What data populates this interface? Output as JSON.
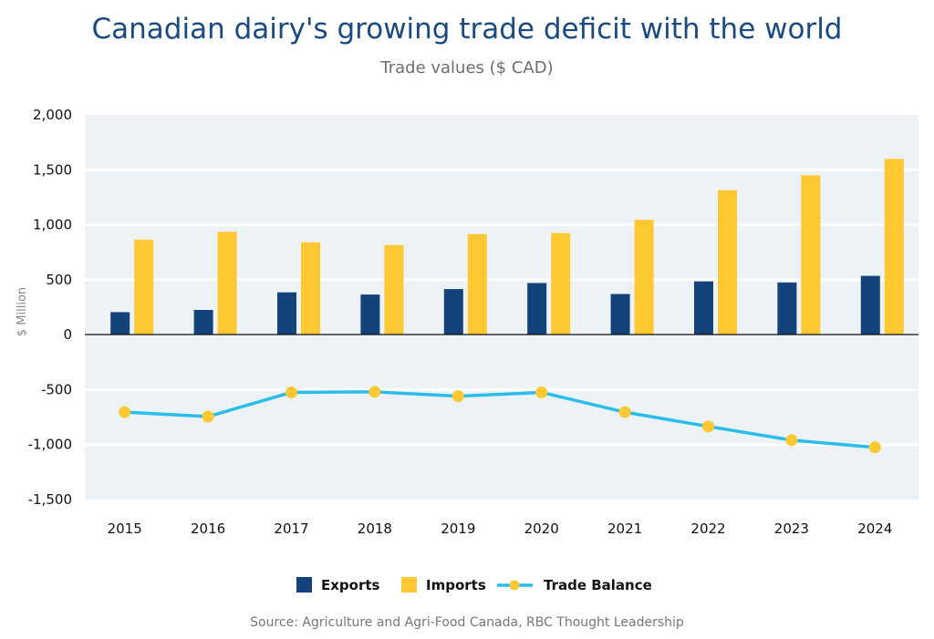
{
  "chart_data": {
    "type": "bar",
    "title": "Canadian dairy's growing trade deficit with the world",
    "subtitle": "Trade values ($ CAD)",
    "ylabel": "$ Million",
    "xlabel": "",
    "ylim": [
      -1500,
      2000
    ],
    "yticks": [
      2000,
      1500,
      1000,
      500,
      0,
      -500,
      -1000,
      -1500
    ],
    "ytick_labels": [
      "2,000",
      "1,500",
      "1,000",
      "500",
      "0",
      "-500",
      "-1,000",
      "-1,500"
    ],
    "categories": [
      "2015",
      "2016",
      "2017",
      "2018",
      "2019",
      "2020",
      "2021",
      "2022",
      "2023",
      "2024"
    ],
    "series": [
      {
        "name": "Exports",
        "kind": "bar",
        "color": "#14427a",
        "values": [
          205,
          225,
          385,
          365,
          415,
          470,
          370,
          485,
          475,
          535
        ]
      },
      {
        "name": "Imports",
        "kind": "bar",
        "color": "#fec832",
        "values": [
          865,
          935,
          840,
          815,
          915,
          925,
          1045,
          1315,
          1450,
          1600
        ]
      },
      {
        "name": "Trade Balance",
        "kind": "line",
        "color": "#2bbde9",
        "marker_color": "#fec832",
        "values": [
          -705,
          -745,
          -525,
          -520,
          -560,
          -525,
          -705,
          -835,
          -960,
          -1025
        ]
      }
    ],
    "grid": true,
    "legend": "bottom-center",
    "source": "Source: Agriculture and Agri-Food Canada, RBC Thought Leadership"
  }
}
